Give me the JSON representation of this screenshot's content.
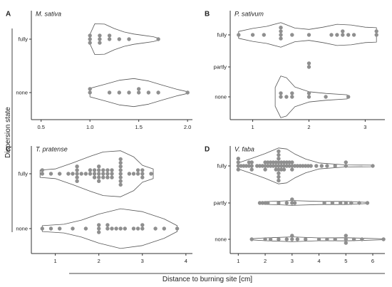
{
  "figure": {
    "ylabel": "Dispersion state",
    "xlabel": "Distance to burning site [cm]"
  },
  "chart_data": [
    {
      "id": "A",
      "type": "scatter",
      "panel_letter": "A",
      "title": "M. sativa",
      "xlim": [
        0.4,
        2.05
      ],
      "x_ticks": [
        0.5,
        1.0,
        1.5,
        2.0
      ],
      "x_tick_labels": [
        "0.5",
        "1.0",
        "1.5",
        "2.0"
      ],
      "categories": [
        "fully",
        "none"
      ],
      "violins": [
        {
          "category": "fully",
          "profile": [
            [
              1.0,
              0.28
            ],
            [
              1.05,
              0.9
            ],
            [
              1.15,
              0.88
            ],
            [
              1.25,
              0.62
            ],
            [
              1.35,
              0.42
            ],
            [
              1.45,
              0.3
            ],
            [
              1.55,
              0.22
            ],
            [
              1.65,
              0.14
            ],
            [
              1.7,
              0.06
            ]
          ]
        },
        {
          "category": "none",
          "profile": [
            [
              1.0,
              0.25
            ],
            [
              1.15,
              0.48
            ],
            [
              1.3,
              0.72
            ],
            [
              1.45,
              0.82
            ],
            [
              1.6,
              0.68
            ],
            [
              1.75,
              0.42
            ],
            [
              1.9,
              0.18
            ],
            [
              2.0,
              0.05
            ]
          ]
        }
      ],
      "series": [
        {
          "category": "fully",
          "points": [
            1.0,
            1.0,
            1.0,
            1.1,
            1.1,
            1.1,
            1.2,
            1.2,
            1.3,
            1.4,
            1.7
          ]
        },
        {
          "category": "none",
          "points": [
            1.0,
            1.0,
            1.2,
            1.3,
            1.4,
            1.5,
            1.5,
            1.6,
            1.7,
            2.0
          ]
        }
      ]
    },
    {
      "id": "B",
      "type": "scatter",
      "panel_letter": "B",
      "title": "P. sativum",
      "xlim": [
        0.6,
        3.35
      ],
      "x_ticks": [
        1,
        2,
        3
      ],
      "x_tick_labels": [
        "1",
        "2",
        "3"
      ],
      "categories": [
        "fully",
        "partly",
        "none"
      ],
      "violins": [
        {
          "category": "fully",
          "profile": [
            [
              0.75,
              0.2
            ],
            [
              1.0,
              0.38
            ],
            [
              1.25,
              0.5
            ],
            [
              1.5,
              0.72
            ],
            [
              1.75,
              0.4
            ],
            [
              2.0,
              0.32
            ],
            [
              2.25,
              0.45
            ],
            [
              2.5,
              0.62
            ],
            [
              2.75,
              0.58
            ],
            [
              3.0,
              0.45
            ],
            [
              3.2,
              0.42
            ]
          ]
        },
        {
          "category": "none",
          "profile": [
            [
              1.4,
              0.55
            ],
            [
              1.5,
              1.22
            ],
            [
              1.6,
              1.12
            ],
            [
              1.75,
              0.58
            ],
            [
              2.0,
              0.3
            ],
            [
              2.3,
              0.2
            ],
            [
              2.68,
              0.12
            ]
          ]
        }
      ],
      "series": [
        {
          "category": "fully",
          "points": [
            0.75,
            1.0,
            1.2,
            1.5,
            1.5,
            1.5,
            1.5,
            1.7,
            2.0,
            2.4,
            2.5,
            2.6,
            2.6,
            2.7,
            2.8,
            3.2,
            3.2
          ]
        },
        {
          "category": "partly",
          "points": [
            2.0,
            2.0
          ]
        },
        {
          "category": "none",
          "points": [
            1.5,
            1.5,
            1.6,
            1.7,
            1.7,
            2.0,
            2.0,
            2.3,
            2.7
          ]
        }
      ]
    },
    {
      "id": "C",
      "type": "scatter",
      "panel_letter": "C",
      "title": "T. pratense",
      "xlim": [
        0.45,
        4.15
      ],
      "x_ticks": [
        1,
        2,
        3,
        4
      ],
      "x_tick_labels": [
        "1",
        "2",
        "3",
        "4"
      ],
      "categories": [
        "fully",
        "none"
      ],
      "violins": [
        {
          "category": "fully",
          "profile": [
            [
              0.65,
              0.15
            ],
            [
              1.0,
              0.2
            ],
            [
              1.4,
              0.45
            ],
            [
              1.8,
              0.72
            ],
            [
              2.1,
              0.9
            ],
            [
              2.5,
              0.95
            ],
            [
              2.8,
              0.7
            ],
            [
              3.0,
              0.35
            ],
            [
              3.25,
              0.2
            ]
          ]
        },
        {
          "category": "none",
          "profile": [
            [
              0.7,
              0.12
            ],
            [
              1.2,
              0.18
            ],
            [
              1.6,
              0.35
            ],
            [
              2.0,
              0.6
            ],
            [
              2.5,
              0.82
            ],
            [
              3.0,
              0.7
            ],
            [
              3.5,
              0.4
            ],
            [
              3.8,
              0.12
            ]
          ]
        }
      ],
      "series": [
        {
          "category": "fully",
          "points": [
            0.7,
            0.7,
            0.9,
            1.1,
            1.3,
            1.4,
            1.5,
            1.5,
            1.5,
            1.5,
            1.5,
            1.6,
            1.7,
            1.8,
            1.8,
            1.9,
            1.9,
            1.9,
            2.0,
            2.0,
            2.0,
            2.0,
            2.0,
            2.1,
            2.1,
            2.1,
            2.2,
            2.2,
            2.2,
            2.3,
            2.3,
            2.3,
            2.5,
            2.5,
            2.5,
            2.5,
            2.5,
            2.5,
            2.5,
            2.5,
            2.7,
            2.8,
            2.9,
            2.9,
            3.0,
            3.0,
            3.0,
            3.2
          ]
        },
        {
          "category": "none",
          "points": [
            0.7,
            0.9,
            1.1,
            1.4,
            1.7,
            2.0,
            2.0,
            2.0,
            2.2,
            2.2,
            2.3,
            2.4,
            2.5,
            2.6,
            2.8,
            2.9,
            3.0,
            3.0,
            3.3,
            3.5,
            3.8
          ]
        }
      ]
    },
    {
      "id": "D",
      "type": "scatter",
      "panel_letter": "D",
      "title": "V. faba",
      "xlim": [
        0.7,
        6.45
      ],
      "x_ticks": [
        1,
        2,
        3,
        4,
        5,
        6
      ],
      "x_tick_labels": [
        "1",
        "2",
        "3",
        "4",
        "5",
        "6"
      ],
      "categories": [
        "fully",
        "partly",
        "none"
      ],
      "violins": [
        {
          "category": "fully",
          "profile": [
            [
              1.0,
              0.15
            ],
            [
              1.5,
              0.38
            ],
            [
              2.0,
              0.62
            ],
            [
              2.5,
              0.9
            ],
            [
              2.8,
              0.85
            ],
            [
              3.1,
              0.6
            ],
            [
              3.5,
              0.35
            ],
            [
              4.0,
              0.15
            ],
            [
              5.0,
              0.05
            ],
            [
              6.0,
              0.04
            ]
          ]
        },
        {
          "category": "partly",
          "profile": [
            [
              1.8,
              0.03
            ],
            [
              2.0,
              0.07
            ],
            [
              2.5,
              0.09
            ],
            [
              3.0,
              0.12
            ],
            [
              4.0,
              0.08
            ],
            [
              5.0,
              0.08
            ],
            [
              5.8,
              0.03
            ]
          ]
        },
        {
          "category": "none",
          "profile": [
            [
              1.5,
              0.03
            ],
            [
              2.0,
              0.07
            ],
            [
              3.0,
              0.12
            ],
            [
              4.0,
              0.07
            ],
            [
              5.0,
              0.08
            ],
            [
              5.5,
              0.06
            ],
            [
              6.4,
              0.02
            ]
          ]
        }
      ],
      "series": [
        {
          "category": "fully",
          "points": [
            1.0,
            1.0,
            1.0,
            1.0,
            1.1,
            1.2,
            1.3,
            1.4,
            1.4,
            1.5,
            1.5,
            1.5,
            1.7,
            1.8,
            1.9,
            2.0,
            2.0,
            2.0,
            2.1,
            2.1,
            2.2,
            2.2,
            2.3,
            2.3,
            2.4,
            2.4,
            2.4,
            2.5,
            2.5,
            2.5,
            2.5,
            2.5,
            2.5,
            2.5,
            2.5,
            2.5,
            2.6,
            2.6,
            2.6,
            2.7,
            2.7,
            2.7,
            2.8,
            2.8,
            2.9,
            2.9,
            3.0,
            3.0,
            3.0,
            3.1,
            3.2,
            3.3,
            3.4,
            3.5,
            3.6,
            3.7,
            3.9,
            4.1,
            4.3,
            4.6,
            5.0,
            5.0,
            6.0
          ]
        },
        {
          "category": "partly",
          "points": [
            1.8,
            1.9,
            2.0,
            2.1,
            2.5,
            2.8,
            3.0,
            3.0,
            3.1,
            4.2,
            4.5,
            4.8,
            5.0,
            5.2,
            5.5,
            5.8
          ]
        },
        {
          "category": "none",
          "points": [
            1.5,
            2.0,
            2.2,
            2.5,
            2.8,
            3.0,
            3.0,
            3.2,
            3.5,
            4.0,
            4.3,
            4.6,
            5.0,
            5.0,
            5.0,
            5.3,
            5.6,
            6.4
          ]
        }
      ]
    }
  ]
}
